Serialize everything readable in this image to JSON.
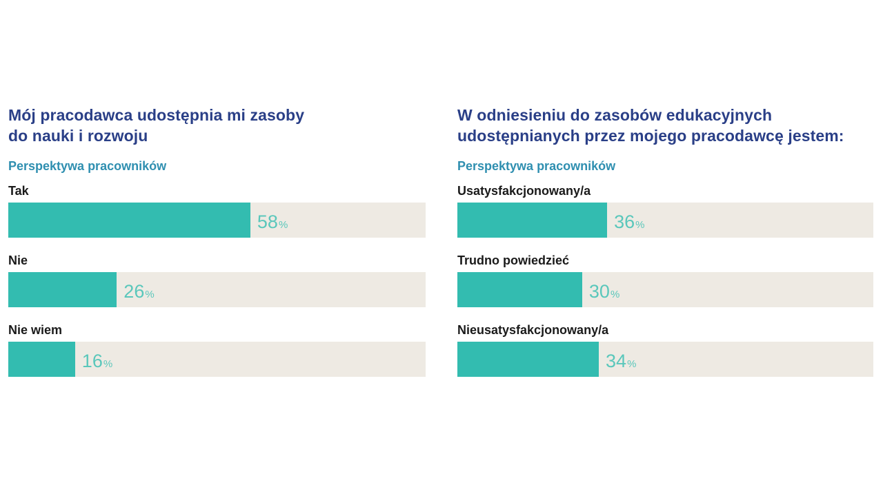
{
  "chart_data": [
    {
      "type": "bar",
      "orientation": "horizontal",
      "title": "Mój pracodawca udostępnia mi zasoby\ndo nauki i rozwoju",
      "subtitle": "Perspektywa pracowników",
      "categories": [
        "Tak",
        "Nie",
        "Nie wiem"
      ],
      "values": [
        58,
        26,
        16
      ],
      "unit": "%",
      "xlim": [
        0,
        100
      ]
    },
    {
      "type": "bar",
      "orientation": "horizontal",
      "title": "W odniesieniu do zasobów edukacyjnych\nudostępnianych przez mojego pracodawcę jestem:",
      "subtitle": "Perspektywa pracowników",
      "categories": [
        "Usatysfakcjonowany/a",
        "Trudno powiedzieć",
        "Nieusatysfakcjonowany/a"
      ],
      "values": [
        36,
        30,
        34
      ],
      "unit": "%",
      "xlim": [
        0,
        100
      ]
    }
  ],
  "colors": {
    "title": "#2a3f87",
    "subtitle": "#2f8fb0",
    "bar_fill": "#33bcb0",
    "bar_track": "#eeeae3",
    "value_text": "#5ac7bb"
  }
}
